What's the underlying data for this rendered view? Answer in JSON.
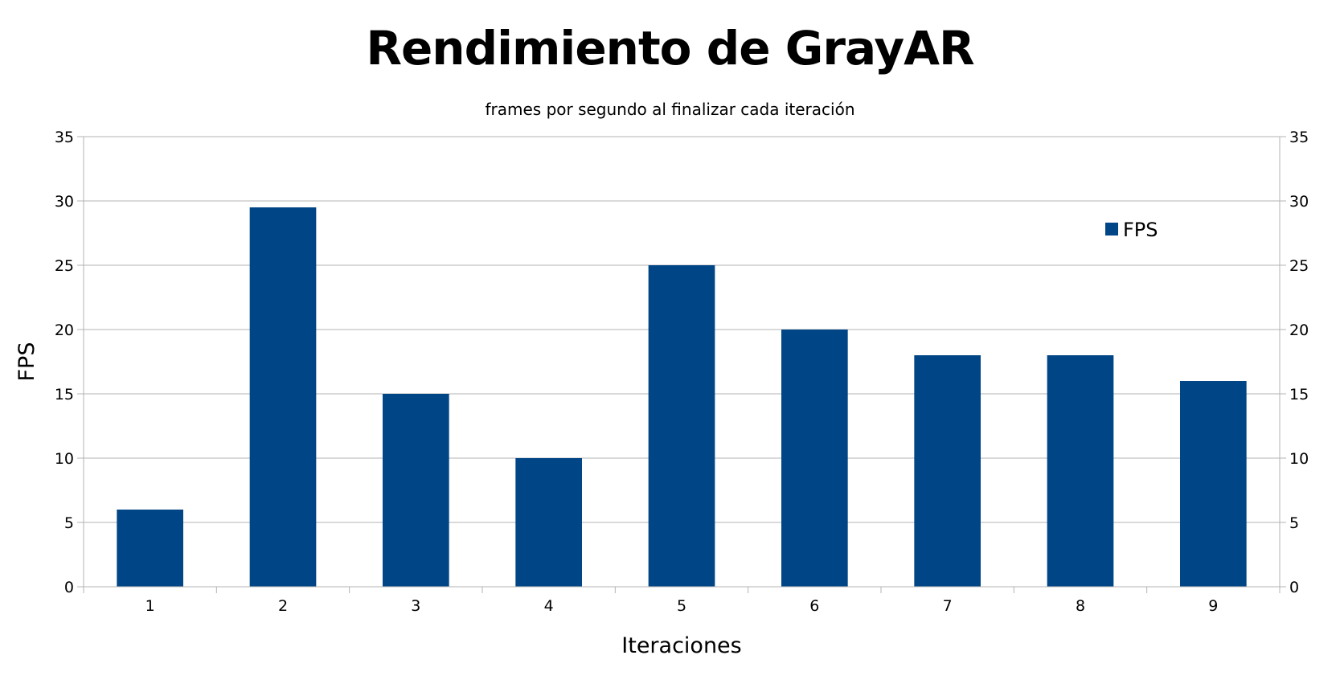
{
  "chart_data": {
    "type": "bar",
    "title": "Rendimiento de GrayAR",
    "subtitle": "frames por segundo al finalizar cada iteración",
    "xlabel": "Iteraciones",
    "ylabel": "FPS",
    "categories": [
      "1",
      "2",
      "3",
      "4",
      "5",
      "6",
      "7",
      "8",
      "9"
    ],
    "series": [
      {
        "name": "FPS",
        "values": [
          6,
          29.5,
          15,
          10,
          25,
          20,
          18,
          18,
          16
        ],
        "color": "#004586"
      }
    ],
    "ylim": [
      0,
      35
    ],
    "yticks": [
      "0",
      "5",
      "10",
      "15",
      "20",
      "25",
      "30",
      "35"
    ],
    "secondary_y_axis": true,
    "grid": true,
    "legend_position": "top-right"
  }
}
